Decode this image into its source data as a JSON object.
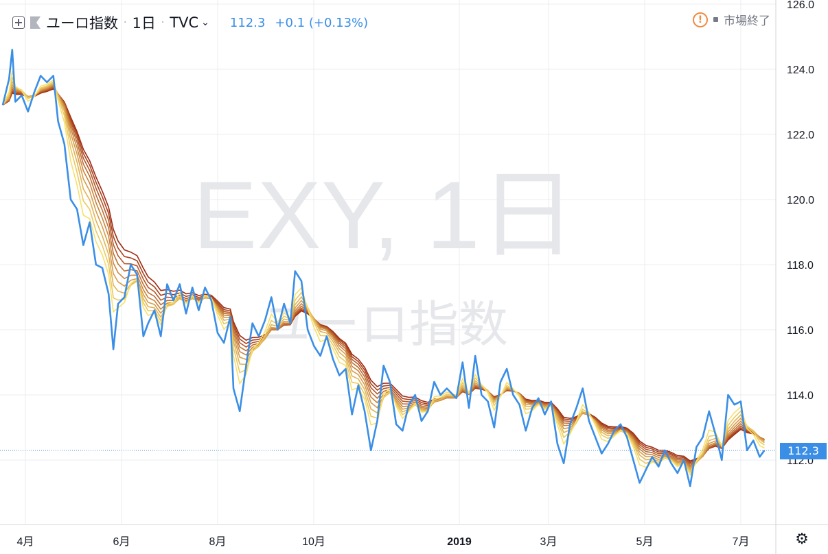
{
  "toolbar": {
    "symbol_name": "ユーロ指数",
    "interval": "1日",
    "exchange": "TVC",
    "last": "112.3",
    "change": "+0.1 (+0.13%)",
    "sep": "·"
  },
  "market_status": "市場終了",
  "watermark": {
    "line1": "EXY, 1日",
    "line2": "ユーロ指数"
  },
  "price_label": "112.3",
  "colors": {
    "price_line": "#3a8ee6",
    "ribbon_fast": "#f7e06a",
    "ribbon_slow": "#9e2a12",
    "grid": "#e9ecf2"
  },
  "chart_data": {
    "type": "line",
    "ylim": [
      110.0,
      126.0
    ],
    "yticks": [
      "112.0",
      "114.0",
      "116.0",
      "118.0",
      "120.0",
      "122.0",
      "124.0",
      "126.0"
    ],
    "xticks": [
      "4月",
      "6月",
      "8月",
      "10月",
      "2019",
      "3月",
      "5月",
      "7月"
    ],
    "x_range": [
      "2018-03-21",
      "2019-07-18"
    ],
    "last_value": 112.3,
    "series": [
      {
        "values": [
          [
            "2018-03-21",
            122.9
          ],
          [
            "2018-03-25",
            123.7
          ],
          [
            "2018-03-27",
            124.6
          ],
          [
            "2018-03-29",
            123.0
          ],
          [
            "2018-04-02",
            123.2
          ],
          [
            "2018-04-06",
            122.7
          ],
          [
            "2018-04-10",
            123.3
          ],
          [
            "2018-04-14",
            123.8
          ],
          [
            "2018-04-18",
            123.6
          ],
          [
            "2018-04-22",
            123.8
          ],
          [
            "2018-04-25",
            122.4
          ],
          [
            "2018-04-29",
            121.7
          ],
          [
            "2018-05-03",
            120.0
          ],
          [
            "2018-05-07",
            119.7
          ],
          [
            "2018-05-11",
            118.6
          ],
          [
            "2018-05-15",
            119.3
          ],
          [
            "2018-05-19",
            118.0
          ],
          [
            "2018-05-23",
            117.9
          ],
          [
            "2018-05-27",
            117.1
          ],
          [
            "2018-05-30",
            115.4
          ],
          [
            "2018-06-02",
            116.8
          ],
          [
            "2018-06-06",
            117.0
          ],
          [
            "2018-06-10",
            118.0
          ],
          [
            "2018-06-14",
            117.7
          ],
          [
            "2018-06-18",
            115.8
          ],
          [
            "2018-06-21",
            116.2
          ],
          [
            "2018-06-25",
            116.6
          ],
          [
            "2018-06-29",
            115.8
          ],
          [
            "2018-07-03",
            117.4
          ],
          [
            "2018-07-07",
            116.9
          ],
          [
            "2018-07-11",
            117.4
          ],
          [
            "2018-07-15",
            116.5
          ],
          [
            "2018-07-19",
            117.3
          ],
          [
            "2018-07-23",
            116.6
          ],
          [
            "2018-07-27",
            117.3
          ],
          [
            "2018-07-31",
            116.9
          ],
          [
            "2018-08-04",
            115.9
          ],
          [
            "2018-08-08",
            115.6
          ],
          [
            "2018-08-12",
            116.4
          ],
          [
            "2018-08-14",
            114.2
          ],
          [
            "2018-08-18",
            113.5
          ],
          [
            "2018-08-22",
            114.9
          ],
          [
            "2018-08-26",
            116.2
          ],
          [
            "2018-08-30",
            115.8
          ],
          [
            "2018-09-03",
            116.3
          ],
          [
            "2018-09-07",
            117.0
          ],
          [
            "2018-09-11",
            116.0
          ],
          [
            "2018-09-15",
            116.8
          ],
          [
            "2018-09-19",
            116.2
          ],
          [
            "2018-09-22",
            117.8
          ],
          [
            "2018-09-26",
            117.5
          ],
          [
            "2018-09-30",
            116.0
          ],
          [
            "2018-10-04",
            115.5
          ],
          [
            "2018-10-08",
            115.2
          ],
          [
            "2018-10-12",
            115.8
          ],
          [
            "2018-10-16",
            115.1
          ],
          [
            "2018-10-20",
            114.6
          ],
          [
            "2018-10-24",
            114.8
          ],
          [
            "2018-10-28",
            113.4
          ],
          [
            "2018-11-01",
            114.3
          ],
          [
            "2018-11-05",
            113.5
          ],
          [
            "2018-11-09",
            112.3
          ],
          [
            "2018-11-13",
            113.2
          ],
          [
            "2018-11-17",
            114.9
          ],
          [
            "2018-11-21",
            114.4
          ],
          [
            "2018-11-25",
            113.1
          ],
          [
            "2018-11-29",
            112.9
          ],
          [
            "2018-12-03",
            113.7
          ],
          [
            "2018-12-07",
            114.0
          ],
          [
            "2018-12-11",
            113.2
          ],
          [
            "2018-12-15",
            113.5
          ],
          [
            "2018-12-19",
            114.4
          ],
          [
            "2018-12-23",
            114.0
          ],
          [
            "2018-12-27",
            114.2
          ],
          [
            "2019-01-02",
            113.9
          ],
          [
            "2019-01-06",
            115.0
          ],
          [
            "2019-01-10",
            113.6
          ],
          [
            "2019-01-14",
            115.2
          ],
          [
            "2019-01-18",
            114.0
          ],
          [
            "2019-01-22",
            113.8
          ],
          [
            "2019-01-26",
            113.0
          ],
          [
            "2019-01-30",
            114.4
          ],
          [
            "2019-02-03",
            114.8
          ],
          [
            "2019-02-07",
            114.0
          ],
          [
            "2019-02-11",
            113.7
          ],
          [
            "2019-02-15",
            112.9
          ],
          [
            "2019-02-19",
            113.6
          ],
          [
            "2019-02-23",
            113.9
          ],
          [
            "2019-02-27",
            113.4
          ],
          [
            "2019-03-03",
            113.8
          ],
          [
            "2019-03-07",
            112.5
          ],
          [
            "2019-03-11",
            111.9
          ],
          [
            "2019-03-15",
            113.1
          ],
          [
            "2019-03-19",
            113.6
          ],
          [
            "2019-03-23",
            114.2
          ],
          [
            "2019-03-27",
            113.2
          ],
          [
            "2019-03-31",
            112.7
          ],
          [
            "2019-04-04",
            112.2
          ],
          [
            "2019-04-08",
            112.5
          ],
          [
            "2019-04-12",
            112.9
          ],
          [
            "2019-04-16",
            113.1
          ],
          [
            "2019-04-20",
            112.7
          ],
          [
            "2019-04-24",
            112.0
          ],
          [
            "2019-04-28",
            111.3
          ],
          [
            "2019-05-02",
            111.7
          ],
          [
            "2019-05-06",
            112.1
          ],
          [
            "2019-05-10",
            111.8
          ],
          [
            "2019-05-14",
            112.3
          ],
          [
            "2019-05-18",
            111.9
          ],
          [
            "2019-05-22",
            111.6
          ],
          [
            "2019-05-26",
            112.0
          ],
          [
            "2019-05-30",
            111.2
          ],
          [
            "2019-06-03",
            112.4
          ],
          [
            "2019-06-07",
            112.7
          ],
          [
            "2019-06-11",
            113.5
          ],
          [
            "2019-06-15",
            112.8
          ],
          [
            "2019-06-19",
            112.0
          ],
          [
            "2019-06-23",
            114.0
          ],
          [
            "2019-06-27",
            113.7
          ],
          [
            "2019-07-01",
            113.8
          ],
          [
            "2019-07-05",
            112.3
          ],
          [
            "2019-07-09",
            112.6
          ],
          [
            "2019-07-13",
            112.1
          ],
          [
            "2019-07-16",
            112.3
          ]
        ]
      }
    ]
  }
}
